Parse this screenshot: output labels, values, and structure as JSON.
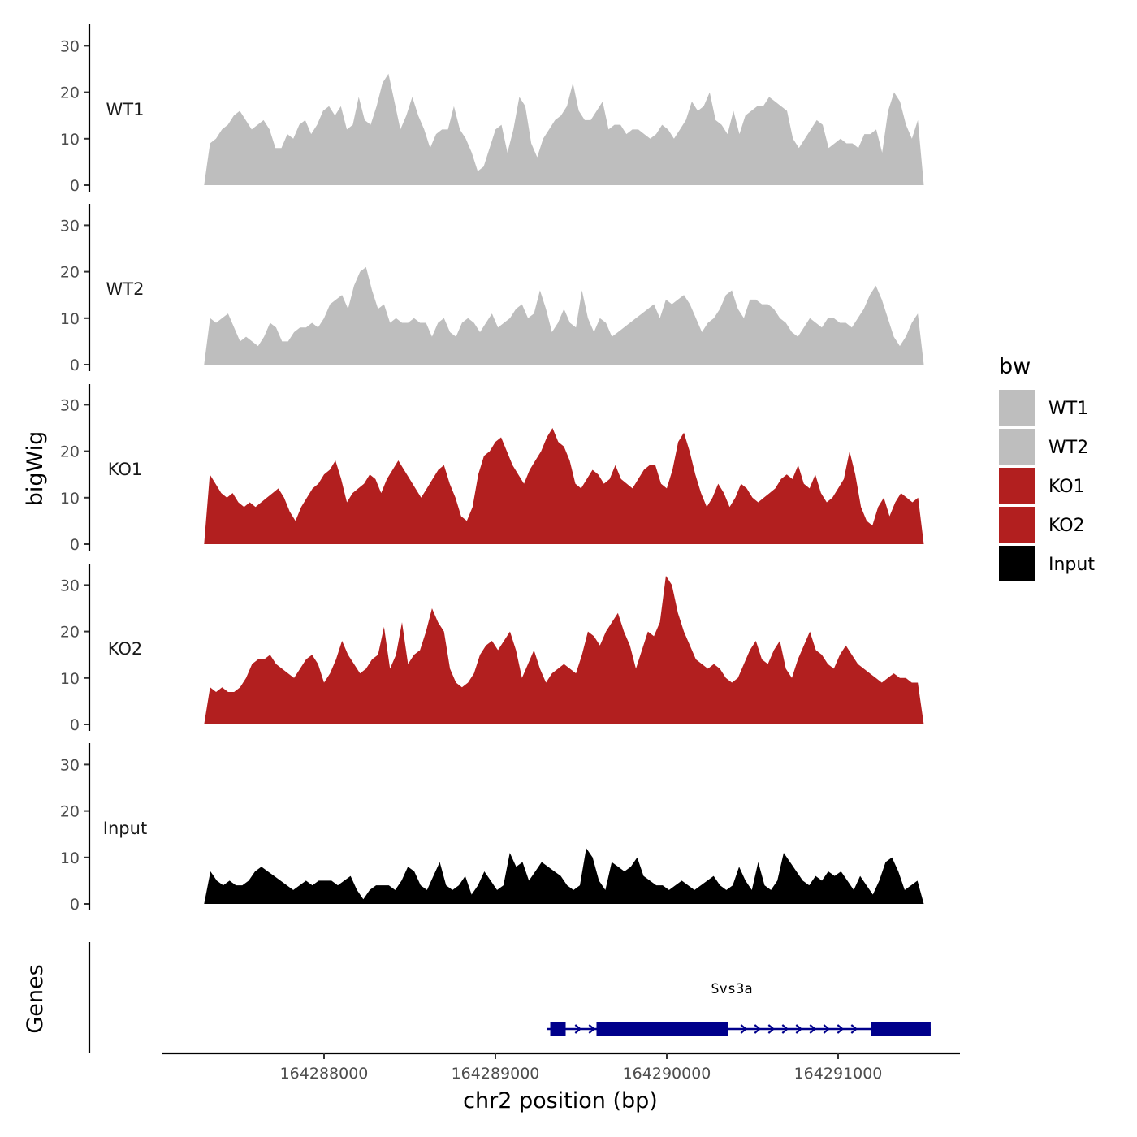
{
  "chart_data": {
    "type": "area",
    "ylabel": "bigWig",
    "xlabel": "chr2 position (bp)",
    "ylim": [
      0,
      33
    ],
    "y_ticks": [
      0,
      10,
      20,
      30
    ],
    "y_tick_labels": [
      "0",
      "10",
      "20",
      "30"
    ],
    "xlim": [
      164287050,
      164291700
    ],
    "x_ticks": [
      164288000,
      164289000,
      164290000,
      164291000
    ],
    "x_tick_labels": [
      "164288000",
      "164289000",
      "164290000",
      "164291000"
    ],
    "legend": {
      "title": "bw",
      "position": "right",
      "entries": [
        {
          "label": "WT1",
          "color": "#bebebe"
        },
        {
          "label": "WT2",
          "color": "#bebebe"
        },
        {
          "label": "KO1",
          "color": "#b21f1f"
        },
        {
          "label": "KO2",
          "color": "#b21f1f"
        },
        {
          "label": "Input",
          "color": "#000000"
        }
      ]
    },
    "tracks_start": 164287300,
    "tracks_end": 164291500,
    "series": [
      {
        "name": "WT1",
        "color": "#bebebe",
        "values": [
          0,
          9,
          10,
          12,
          13,
          15,
          16,
          14,
          12,
          13,
          14,
          12,
          8,
          8,
          11,
          10,
          13,
          14,
          11,
          13,
          16,
          17,
          15,
          17,
          12,
          13,
          19,
          14,
          13,
          17,
          22,
          24,
          18,
          12,
          15,
          19,
          15,
          12,
          8,
          11,
          12,
          12,
          17,
          12,
          10,
          7,
          3,
          4,
          8,
          12,
          13,
          7,
          12,
          19,
          17,
          9,
          6,
          10,
          12,
          14,
          15,
          17,
          22,
          16,
          14,
          14,
          16,
          18,
          12,
          13,
          13,
          11,
          12,
          12,
          11,
          10,
          11,
          13,
          12,
          10,
          12,
          14,
          18,
          16,
          17,
          20,
          14,
          13,
          11,
          16,
          11,
          15,
          16,
          17,
          17,
          19,
          18,
          17,
          16,
          10,
          8,
          10,
          12,
          14,
          13,
          8,
          9,
          10,
          9,
          9,
          8,
          11,
          11,
          12,
          7,
          16,
          20,
          18,
          13,
          10,
          14,
          0
        ]
      },
      {
        "name": "WT2",
        "color": "#bebebe",
        "values": [
          0,
          10,
          9,
          10,
          11,
          8,
          5,
          6,
          5,
          4,
          6,
          9,
          8,
          5,
          5,
          7,
          8,
          8,
          9,
          8,
          10,
          13,
          14,
          15,
          12,
          17,
          20,
          21,
          16,
          12,
          13,
          9,
          10,
          9,
          9,
          10,
          9,
          9,
          6,
          9,
          10,
          7,
          6,
          9,
          10,
          9,
          7,
          9,
          11,
          8,
          9,
          10,
          12,
          13,
          10,
          11,
          16,
          12,
          7,
          9,
          12,
          9,
          8,
          16,
          10,
          7,
          10,
          9,
          6,
          7,
          8,
          9,
          10,
          11,
          12,
          13,
          10,
          14,
          13,
          14,
          15,
          13,
          10,
          7,
          9,
          10,
          12,
          15,
          16,
          12,
          10,
          14,
          14,
          13,
          13,
          12,
          10,
          9,
          7,
          6,
          8,
          10,
          9,
          8,
          10,
          10,
          9,
          9,
          8,
          10,
          12,
          15,
          17,
          14,
          10,
          6,
          4,
          6,
          9,
          11,
          0
        ]
      },
      {
        "name": "KO1",
        "color": "#b21f1f",
        "values": [
          0,
          15,
          13,
          11,
          10,
          11,
          9,
          8,
          9,
          8,
          9,
          10,
          11,
          12,
          10,
          7,
          5,
          8,
          10,
          12,
          13,
          15,
          16,
          18,
          14,
          9,
          11,
          12,
          13,
          15,
          14,
          11,
          14,
          16,
          18,
          16,
          14,
          12,
          10,
          12,
          14,
          16,
          17,
          13,
          10,
          6,
          5,
          8,
          15,
          19,
          20,
          22,
          23,
          20,
          17,
          15,
          13,
          16,
          18,
          20,
          23,
          25,
          22,
          21,
          18,
          13,
          12,
          14,
          16,
          15,
          13,
          14,
          17,
          14,
          13,
          12,
          14,
          16,
          17,
          17,
          13,
          12,
          16,
          22,
          24,
          20,
          15,
          11,
          8,
          10,
          13,
          11,
          8,
          10,
          13,
          12,
          10,
          9,
          10,
          11,
          12,
          14,
          15,
          14,
          17,
          13,
          12,
          15,
          11,
          9,
          10,
          12,
          14,
          20,
          15,
          8,
          5,
          4,
          8,
          10,
          6,
          9,
          11,
          10,
          9,
          10,
          0
        ]
      },
      {
        "name": "KO2",
        "color": "#b21f1f",
        "values": [
          0,
          8,
          7,
          8,
          7,
          7,
          8,
          10,
          13,
          14,
          14,
          15,
          13,
          12,
          11,
          10,
          12,
          14,
          15,
          13,
          9,
          11,
          14,
          18,
          15,
          13,
          11,
          12,
          14,
          15,
          21,
          12,
          15,
          22,
          13,
          15,
          16,
          20,
          25,
          22,
          20,
          12,
          9,
          8,
          9,
          11,
          15,
          17,
          18,
          16,
          18,
          20,
          16,
          10,
          13,
          16,
          12,
          9,
          11,
          12,
          13,
          12,
          11,
          15,
          20,
          19,
          17,
          20,
          22,
          24,
          20,
          17,
          12,
          16,
          20,
          19,
          22,
          32,
          30,
          24,
          20,
          17,
          14,
          13,
          12,
          13,
          12,
          10,
          9,
          10,
          13,
          16,
          18,
          14,
          13,
          16,
          18,
          12,
          10,
          14,
          17,
          20,
          16,
          15,
          13,
          12,
          15,
          17,
          15,
          13,
          12,
          11,
          10,
          9,
          10,
          11,
          10,
          10,
          9,
          9,
          0
        ]
      },
      {
        "name": "Input",
        "color": "#000000",
        "values": [
          0,
          7,
          5,
          4,
          5,
          4,
          4,
          5,
          7,
          8,
          7,
          6,
          5,
          4,
          3,
          4,
          5,
          4,
          5,
          5,
          5,
          4,
          5,
          6,
          3,
          1,
          3,
          4,
          4,
          4,
          3,
          5,
          8,
          7,
          4,
          3,
          6,
          9,
          4,
          3,
          4,
          6,
          2,
          4,
          7,
          5,
          3,
          4,
          11,
          8,
          9,
          5,
          7,
          9,
          8,
          7,
          6,
          4,
          3,
          4,
          12,
          10,
          5,
          3,
          9,
          8,
          7,
          8,
          10,
          6,
          5,
          4,
          4,
          3,
          4,
          5,
          4,
          3,
          4,
          5,
          6,
          4,
          3,
          4,
          8,
          5,
          3,
          9,
          4,
          3,
          5,
          11,
          9,
          7,
          5,
          4,
          6,
          5,
          7,
          6,
          7,
          5,
          3,
          6,
          4,
          2,
          5,
          9,
          10,
          7,
          3,
          4,
          5,
          0
        ]
      }
    ],
    "track_labels": [
      "WT1",
      "WT2",
      "KO1",
      "KO2",
      "Input"
    ],
    "genes_panel": {
      "ylabel": "Genes",
      "gene": {
        "name": "Svs3a",
        "color": "#00008b",
        "start": 164289300,
        "end": 164291540,
        "strand": "+",
        "exons": [
          {
            "start": 164289320,
            "end": 164289410
          },
          {
            "start": 164289590,
            "end": 164290360
          },
          {
            "start": 164291190,
            "end": 164291540
          }
        ]
      }
    }
  }
}
